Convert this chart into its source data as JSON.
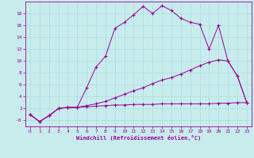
{
  "xlabel": "Windchill (Refroidissement éolien,°C)",
  "ylabel": "",
  "bg_color": "#c8ecec",
  "line_color": "#990099",
  "grid_color": "#aadddd",
  "xlim": [
    -0.5,
    23.5
  ],
  "ylim": [
    -1.0,
    20.0
  ],
  "xticks": [
    0,
    1,
    2,
    3,
    4,
    5,
    6,
    7,
    8,
    9,
    10,
    11,
    12,
    13,
    14,
    15,
    16,
    17,
    18,
    19,
    20,
    21,
    22,
    23
  ],
  "yticks": [
    0,
    2,
    4,
    6,
    8,
    10,
    12,
    14,
    16,
    18
  ],
  "ytick_labels": [
    "-0",
    "2",
    "4",
    "6",
    "8",
    "10",
    "12",
    "14",
    "16",
    "18"
  ],
  "line1_x": [
    0,
    1,
    2,
    3,
    4,
    5,
    6,
    7,
    8,
    9,
    10,
    11,
    12,
    13,
    14,
    15,
    16,
    17,
    18,
    19,
    20,
    21,
    22,
    23
  ],
  "line1_y": [
    1.0,
    -0.2,
    0.8,
    2.0,
    2.2,
    2.2,
    5.5,
    9.0,
    10.8,
    15.5,
    16.5,
    17.8,
    19.2,
    18.0,
    19.3,
    18.5,
    17.2,
    16.5,
    16.2,
    12.0,
    16.0,
    10.0,
    7.5,
    3.0
  ],
  "line2_x": [
    0,
    1,
    2,
    3,
    4,
    5,
    6,
    7,
    8,
    9,
    10,
    11,
    12,
    13,
    14,
    15,
    16,
    17,
    18,
    19,
    20,
    21,
    22,
    23
  ],
  "line2_y": [
    1.0,
    -0.2,
    0.8,
    2.0,
    2.2,
    2.2,
    2.5,
    2.8,
    3.2,
    3.8,
    4.4,
    5.0,
    5.5,
    6.2,
    6.8,
    7.2,
    7.8,
    8.5,
    9.2,
    9.8,
    10.2,
    10.0,
    7.5,
    3.0
  ],
  "line3_x": [
    0,
    1,
    2,
    3,
    4,
    5,
    6,
    7,
    8,
    9,
    10,
    11,
    12,
    13,
    14,
    15,
    16,
    17,
    18,
    19,
    20,
    21,
    22,
    23
  ],
  "line3_y": [
    1.0,
    -0.2,
    0.8,
    2.0,
    2.2,
    2.2,
    2.3,
    2.4,
    2.5,
    2.6,
    2.6,
    2.7,
    2.7,
    2.7,
    2.8,
    2.8,
    2.8,
    2.8,
    2.8,
    2.8,
    2.9,
    2.9,
    3.0,
    3.0
  ]
}
